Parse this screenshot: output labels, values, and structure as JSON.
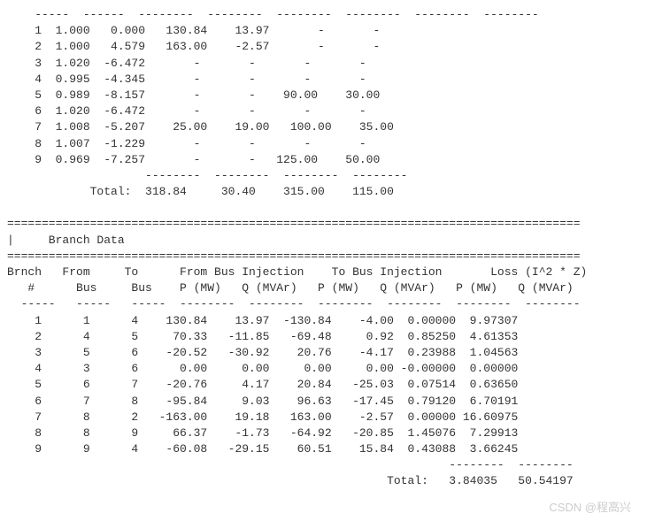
{
  "bus_table": {
    "top_dashes": "    -----  ------  --------  --------  --------  --------  --------  --------",
    "rows": [
      {
        "n": 1,
        "v": "1.000",
        "ang": " 0.000",
        "pg": "130.84",
        "qg": " 13.97",
        "pl": "    -",
        "ql": "    -"
      },
      {
        "n": 2,
        "v": "1.000",
        "ang": " 4.579",
        "pg": "163.00",
        "qg": " -2.57",
        "pl": "    -",
        "ql": "    -"
      },
      {
        "n": 3,
        "v": "1.020",
        "ang": "-6.472",
        "pg": "    -",
        "qg": "    -",
        "pl": "    -",
        "ql": "    -"
      },
      {
        "n": 4,
        "v": "0.995",
        "ang": "-4.345",
        "pg": "    -",
        "qg": "    -",
        "pl": "    -",
        "ql": "    -"
      },
      {
        "n": 5,
        "v": "0.989",
        "ang": "-8.157",
        "pg": "    -",
        "qg": "    -",
        "pl": " 90.00",
        "ql": " 30.00"
      },
      {
        "n": 6,
        "v": "1.020",
        "ang": "-6.472",
        "pg": "    -",
        "qg": "    -",
        "pl": "    -",
        "ql": "    -"
      },
      {
        "n": 7,
        "v": "1.008",
        "ang": "-5.207",
        "pg": " 25.00",
        "qg": " 19.00",
        "pl": "100.00",
        "ql": " 35.00"
      },
      {
        "n": 8,
        "v": "1.007",
        "ang": "-1.229",
        "pg": "    -",
        "qg": "    -",
        "pl": "    -",
        "ql": "    -"
      },
      {
        "n": 9,
        "v": "0.969",
        "ang": "-7.257",
        "pg": "    -",
        "qg": "    -",
        "pl": "125.00",
        "ql": " 50.00"
      }
    ],
    "total_dashes": "                    --------  --------  --------  --------",
    "total_label": "            Total: ",
    "total_values": " 318.84     30.40    315.00    115.00"
  },
  "divider_eq": "===================================================================================",
  "branch_title": "|     Branch Data                                                                                                  |",
  "branch_header1": "Brnch   From     To      From Bus Injection    To Bus Injection       Loss (I^2 * Z)",
  "branch_header2": "   #      Bus     Bus    P (MW)   Q (MVAr)   P (MW)   Q (MVAr)   P (MW)   Q (MVAr)",
  "branch_dashes": "  -----   -----   -----  --------  --------  --------  --------  --------  --------",
  "branch_rows": [
    {
      "n": 1,
      "f": 1,
      "t": 4,
      "pf": " 130.84",
      "qf": "  13.97",
      "pt": "-130.84",
      "qt": "  -4.00",
      "lp": " 0.00000",
      "lq": " 9.97307"
    },
    {
      "n": 2,
      "f": 4,
      "t": 5,
      "pf": "  70.33",
      "qf": " -11.85",
      "pt": " -69.48",
      "qt": "   0.92",
      "lp": " 0.85250",
      "lq": " 4.61353"
    },
    {
      "n": 3,
      "f": 5,
      "t": 6,
      "pf": " -20.52",
      "qf": " -30.92",
      "pt": "  20.76",
      "qt": "  -4.17",
      "lp": " 0.23988",
      "lq": " 1.04563"
    },
    {
      "n": 4,
      "f": 3,
      "t": 6,
      "pf": "   0.00",
      "qf": "   0.00",
      "pt": "   0.00",
      "qt": "   0.00",
      "lp": "-0.00000",
      "lq": " 0.00000"
    },
    {
      "n": 5,
      "f": 6,
      "t": 7,
      "pf": " -20.76",
      "qf": "   4.17",
      "pt": "  20.84",
      "qt": " -25.03",
      "lp": " 0.07514",
      "lq": " 0.63650"
    },
    {
      "n": 6,
      "f": 7,
      "t": 8,
      "pf": " -95.84",
      "qf": "   9.03",
      "pt": "  96.63",
      "qt": " -17.45",
      "lp": " 0.79120",
      "lq": " 6.70191"
    },
    {
      "n": 7,
      "f": 8,
      "t": 2,
      "pf": "-163.00",
      "qf": "  19.18",
      "pt": " 163.00",
      "qt": "  -2.57",
      "lp": " 0.00000",
      "lq": "16.60975"
    },
    {
      "n": 8,
      "f": 8,
      "t": 9,
      "pf": "  66.37",
      "qf": "  -1.73",
      "pt": " -64.92",
      "qt": " -20.85",
      "lp": " 1.45076",
      "lq": " 7.29913"
    },
    {
      "n": 9,
      "f": 9,
      "t": 4,
      "pf": " -60.08",
      "qf": " -29.15",
      "pt": "  60.51",
      "qt": "  15.84",
      "lp": " 0.43088",
      "lq": " 3.66245"
    }
  ],
  "branch_total_dashes": "                                                                --------  --------",
  "branch_total_label": "                                                       Total:   ",
  "branch_total_values": "3.84035   50.54197",
  "watermark": "CSDN @程高兴"
}
